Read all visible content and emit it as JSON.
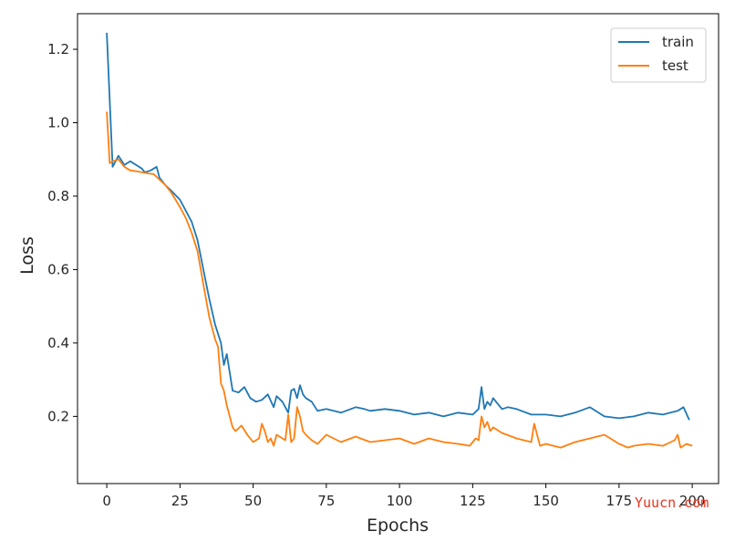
{
  "chart_data": {
    "type": "line",
    "title": "",
    "xlabel": "Epochs",
    "ylabel": "Loss",
    "xlim": [
      -10,
      209
    ],
    "ylim": [
      0.017,
      1.297
    ],
    "xticks": [
      0,
      25,
      50,
      75,
      100,
      125,
      150,
      175,
      200
    ],
    "yticks": [
      0.2,
      0.4,
      0.6,
      0.8,
      1.0,
      1.2
    ],
    "grid": false,
    "legend": "top-right",
    "series": [
      {
        "name": "train",
        "color": "#1f77b4",
        "x": [
          0,
          2,
          4,
          6,
          8,
          10,
          12,
          13,
          15,
          17,
          18,
          20,
          22,
          25,
          27,
          29,
          31,
          33,
          35,
          37,
          39,
          40,
          41,
          42,
          43,
          45,
          47,
          49,
          51,
          53,
          55,
          57,
          58,
          60,
          62,
          63,
          64,
          65,
          66,
          67,
          68,
          70,
          72,
          75,
          80,
          85,
          88,
          90,
          95,
          100,
          105,
          110,
          115,
          120,
          125,
          127,
          128,
          129,
          130,
          131,
          132,
          133,
          134,
          135,
          137,
          140,
          145,
          150,
          155,
          160,
          165,
          170,
          175,
          180,
          185,
          190,
          195,
          197,
          199
        ],
        "y": [
          1.245,
          0.88,
          0.91,
          0.885,
          0.895,
          0.885,
          0.875,
          0.865,
          0.87,
          0.88,
          0.85,
          0.83,
          0.815,
          0.79,
          0.76,
          0.73,
          0.68,
          0.6,
          0.52,
          0.45,
          0.4,
          0.34,
          0.37,
          0.32,
          0.27,
          0.265,
          0.28,
          0.25,
          0.24,
          0.245,
          0.26,
          0.225,
          0.255,
          0.24,
          0.21,
          0.27,
          0.275,
          0.25,
          0.285,
          0.26,
          0.25,
          0.24,
          0.215,
          0.22,
          0.21,
          0.225,
          0.22,
          0.215,
          0.22,
          0.215,
          0.205,
          0.21,
          0.2,
          0.21,
          0.205,
          0.22,
          0.28,
          0.22,
          0.24,
          0.23,
          0.25,
          0.24,
          0.23,
          0.22,
          0.225,
          0.22,
          0.205,
          0.205,
          0.2,
          0.21,
          0.225,
          0.2,
          0.195,
          0.2,
          0.21,
          0.205,
          0.215,
          0.225,
          0.19
        ]
      },
      {
        "name": "test",
        "color": "#ff7f0e",
        "x": [
          0,
          1,
          2,
          4,
          6,
          8,
          10,
          12,
          14,
          16,
          18,
          20,
          22,
          25,
          27,
          29,
          31,
          33,
          35,
          37,
          38,
          39,
          40,
          41,
          42,
          43,
          44,
          46,
          48,
          50,
          52,
          53,
          54,
          55,
          56,
          57,
          58,
          60,
          61,
          62,
          63,
          64,
          65,
          66,
          67,
          68,
          70,
          72,
          75,
          80,
          85,
          90,
          95,
          100,
          105,
          110,
          115,
          120,
          124,
          126,
          127,
          128,
          129,
          130,
          131,
          132,
          135,
          140,
          145,
          146,
          148,
          150,
          155,
          160,
          165,
          170,
          175,
          178,
          180,
          185,
          190,
          194,
          195,
          196,
          198,
          200
        ],
        "y": [
          1.03,
          0.89,
          0.895,
          0.9,
          0.88,
          0.87,
          0.868,
          0.865,
          0.862,
          0.86,
          0.845,
          0.83,
          0.81,
          0.77,
          0.74,
          0.7,
          0.65,
          0.56,
          0.47,
          0.41,
          0.39,
          0.29,
          0.27,
          0.23,
          0.2,
          0.17,
          0.16,
          0.175,
          0.15,
          0.13,
          0.14,
          0.18,
          0.16,
          0.13,
          0.14,
          0.12,
          0.15,
          0.14,
          0.135,
          0.205,
          0.13,
          0.14,
          0.225,
          0.2,
          0.16,
          0.15,
          0.135,
          0.125,
          0.15,
          0.13,
          0.145,
          0.13,
          0.135,
          0.14,
          0.125,
          0.14,
          0.13,
          0.125,
          0.12,
          0.14,
          0.135,
          0.2,
          0.17,
          0.185,
          0.16,
          0.17,
          0.155,
          0.14,
          0.13,
          0.18,
          0.12,
          0.125,
          0.115,
          0.13,
          0.14,
          0.15,
          0.125,
          0.115,
          0.12,
          0.125,
          0.12,
          0.135,
          0.15,
          0.115,
          0.125,
          0.12
        ]
      }
    ]
  },
  "watermark": {
    "text": "Yuucn.com",
    "color": "#e8331c"
  }
}
